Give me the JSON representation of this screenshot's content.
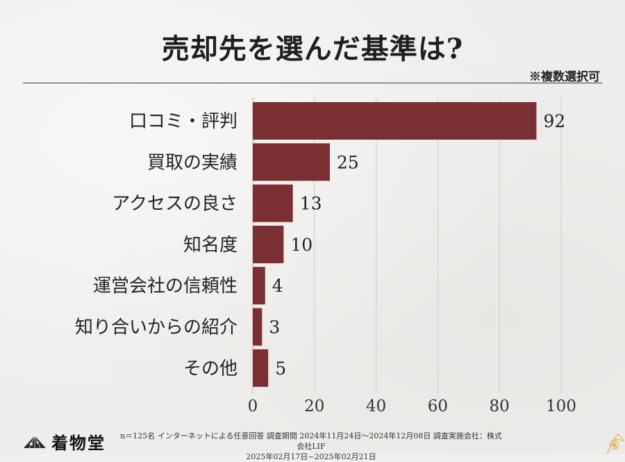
{
  "title": "売却先を選んだ基準は?",
  "note": "※複数選択可",
  "chart_data": {
    "type": "bar",
    "orientation": "horizontal",
    "categories": [
      "口コミ・評判",
      "買取の実績",
      "アクセスの良さ",
      "知名度",
      "運営会社の信頼性",
      "知り合いからの紹介",
      "その他"
    ],
    "values": [
      92,
      25,
      13,
      10,
      4,
      3,
      5
    ],
    "xlim": [
      0,
      100
    ],
    "xticks": [
      0,
      20,
      40,
      60,
      80,
      100
    ],
    "grid": true,
    "bar_color": "#7a2f32"
  },
  "footer": {
    "brand": "着物堂",
    "line1": "n＝125名 インターネットによる任意回答 調査期間 2024年11月24日～2024年12月08日 調査実施会社：株式会社LIF",
    "line2": "2025年02月17日~2025年02月21日"
  }
}
